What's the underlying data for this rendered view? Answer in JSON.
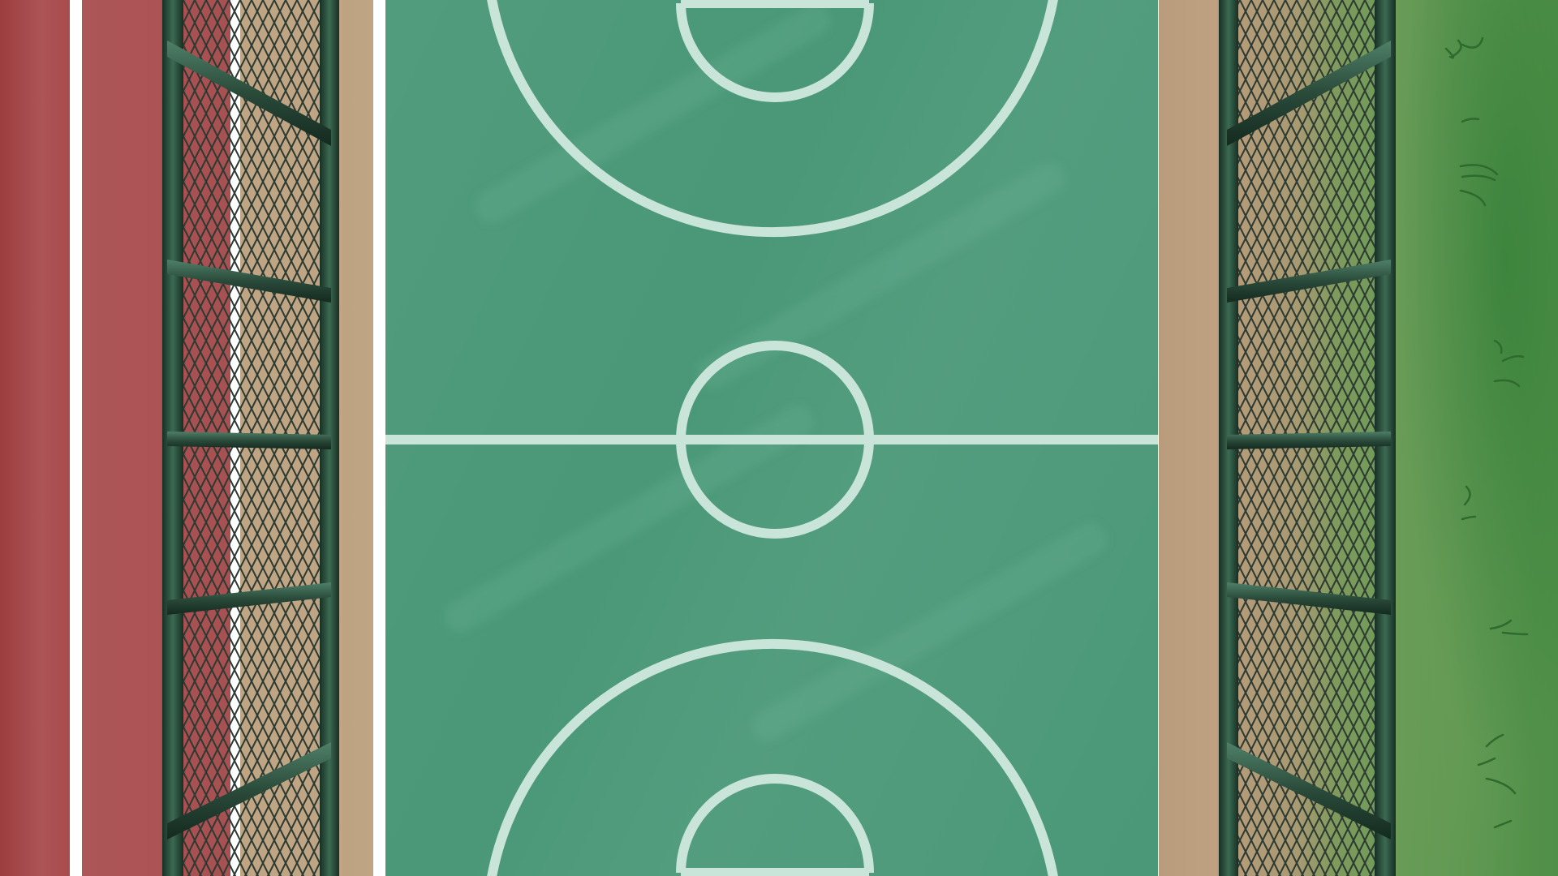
{
  "scene": {
    "name": "basketball-court-top-down",
    "colors": {
      "track_red": "#a84b4d",
      "track_line": "#ffffff",
      "court_green": "#4a9878",
      "court_line": "#c9e4d8",
      "sand": "#bca181",
      "grass": "#5c9650",
      "fence_frame": "#1f3a2c",
      "fence_mesh": "#2d3b33"
    },
    "elements": {
      "track": "running-track",
      "court": "basketball-court",
      "fence_left": "chain-link-fence",
      "fence_right": "chain-link-fence",
      "grass": "grass-field"
    }
  }
}
